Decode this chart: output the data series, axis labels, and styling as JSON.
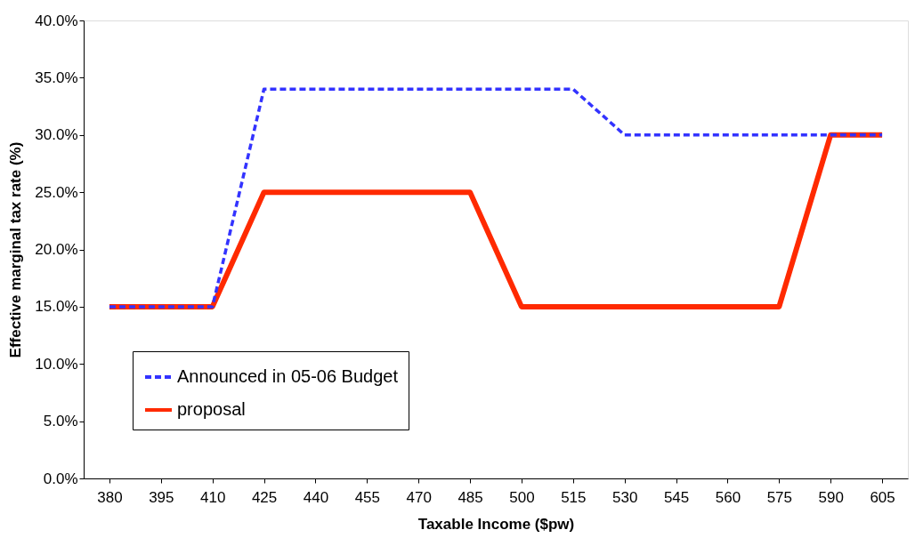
{
  "chart_data": {
    "type": "line",
    "xlabel": "Taxable Income ($pw)",
    "ylabel": "Effective marginal tax rate (%)",
    "categories": [
      "380",
      "395",
      "410",
      "425",
      "440",
      "455",
      "470",
      "485",
      "500",
      "515",
      "530",
      "545",
      "560",
      "575",
      "590",
      "605"
    ],
    "series": [
      {
        "name": "Announced in 05-06 Budget",
        "color": "#3333ff",
        "line_style": "dashed",
        "values": [
          15,
          15,
          15,
          34,
          34,
          34,
          34,
          34,
          34,
          34,
          30,
          30,
          30,
          30,
          30,
          30
        ]
      },
      {
        "name": "proposal",
        "color": "#ff2a00",
        "line_style": "solid",
        "values": [
          15,
          15,
          15,
          25,
          25,
          25,
          25,
          25,
          15,
          15,
          15,
          15,
          15,
          15,
          30,
          30
        ]
      }
    ],
    "ylim": [
      0,
      40
    ],
    "yticks": [
      {
        "value": 0,
        "label": "0.0%"
      },
      {
        "value": 5,
        "label": "5.0%"
      },
      {
        "value": 10,
        "label": "10.0%"
      },
      {
        "value": 15,
        "label": "15.0%"
      },
      {
        "value": 20,
        "label": "20.0%"
      },
      {
        "value": 25,
        "label": "25.0%"
      },
      {
        "value": 30,
        "label": "30.0%"
      },
      {
        "value": 35,
        "label": "35.0%"
      },
      {
        "value": 40,
        "label": "40.0%"
      }
    ],
    "grid": false,
    "legend": "bottom left",
    "marker": "none"
  }
}
